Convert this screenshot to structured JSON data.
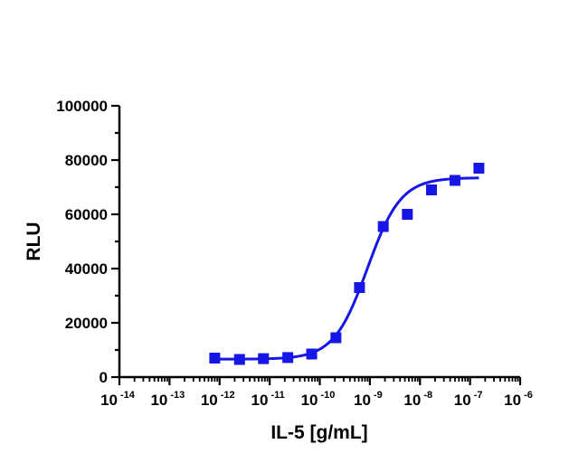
{
  "chart_data": {
    "type": "scatter",
    "xlabel": "IL-5 [g/mL]",
    "ylabel": "RLU",
    "x_scale": "log10",
    "xlim": [
      1e-14,
      1e-06
    ],
    "ylim": [
      0,
      100000
    ],
    "x_tick_exponents": [
      "-14",
      "-13",
      "-12",
      "-11",
      "-10",
      "-9",
      "-8",
      "-7",
      "-6"
    ],
    "x_tick_base": "10",
    "y_ticks": [
      "0",
      "20000",
      "40000",
      "60000",
      "80000",
      "100000"
    ],
    "series": [
      {
        "points": [
          {
            "x": 8e-13,
            "y": 7000
          },
          {
            "x": 2.5e-12,
            "y": 6500
          },
          {
            "x": 7.5e-12,
            "y": 6800
          },
          {
            "x": 2.3e-11,
            "y": 7200
          },
          {
            "x": 6.9e-11,
            "y": 8500
          },
          {
            "x": 2.1e-10,
            "y": 14500
          },
          {
            "x": 6.2e-10,
            "y": 33000
          },
          {
            "x": 1.85e-09,
            "y": 55500
          },
          {
            "x": 5.6e-09,
            "y": 60000
          },
          {
            "x": 1.7e-08,
            "y": 69000
          },
          {
            "x": 5e-08,
            "y": 72500
          },
          {
            "x": 1.5e-07,
            "y": 77000
          }
        ],
        "fit": {
          "model": "4PL",
          "bottom": 6600,
          "top": 73500,
          "log_ec50": -9.05,
          "hill": 1.3,
          "x_range": [
            8e-13,
            1.5e-07
          ]
        },
        "color": "#1616e6"
      }
    ],
    "grid": false,
    "legend": "none"
  }
}
